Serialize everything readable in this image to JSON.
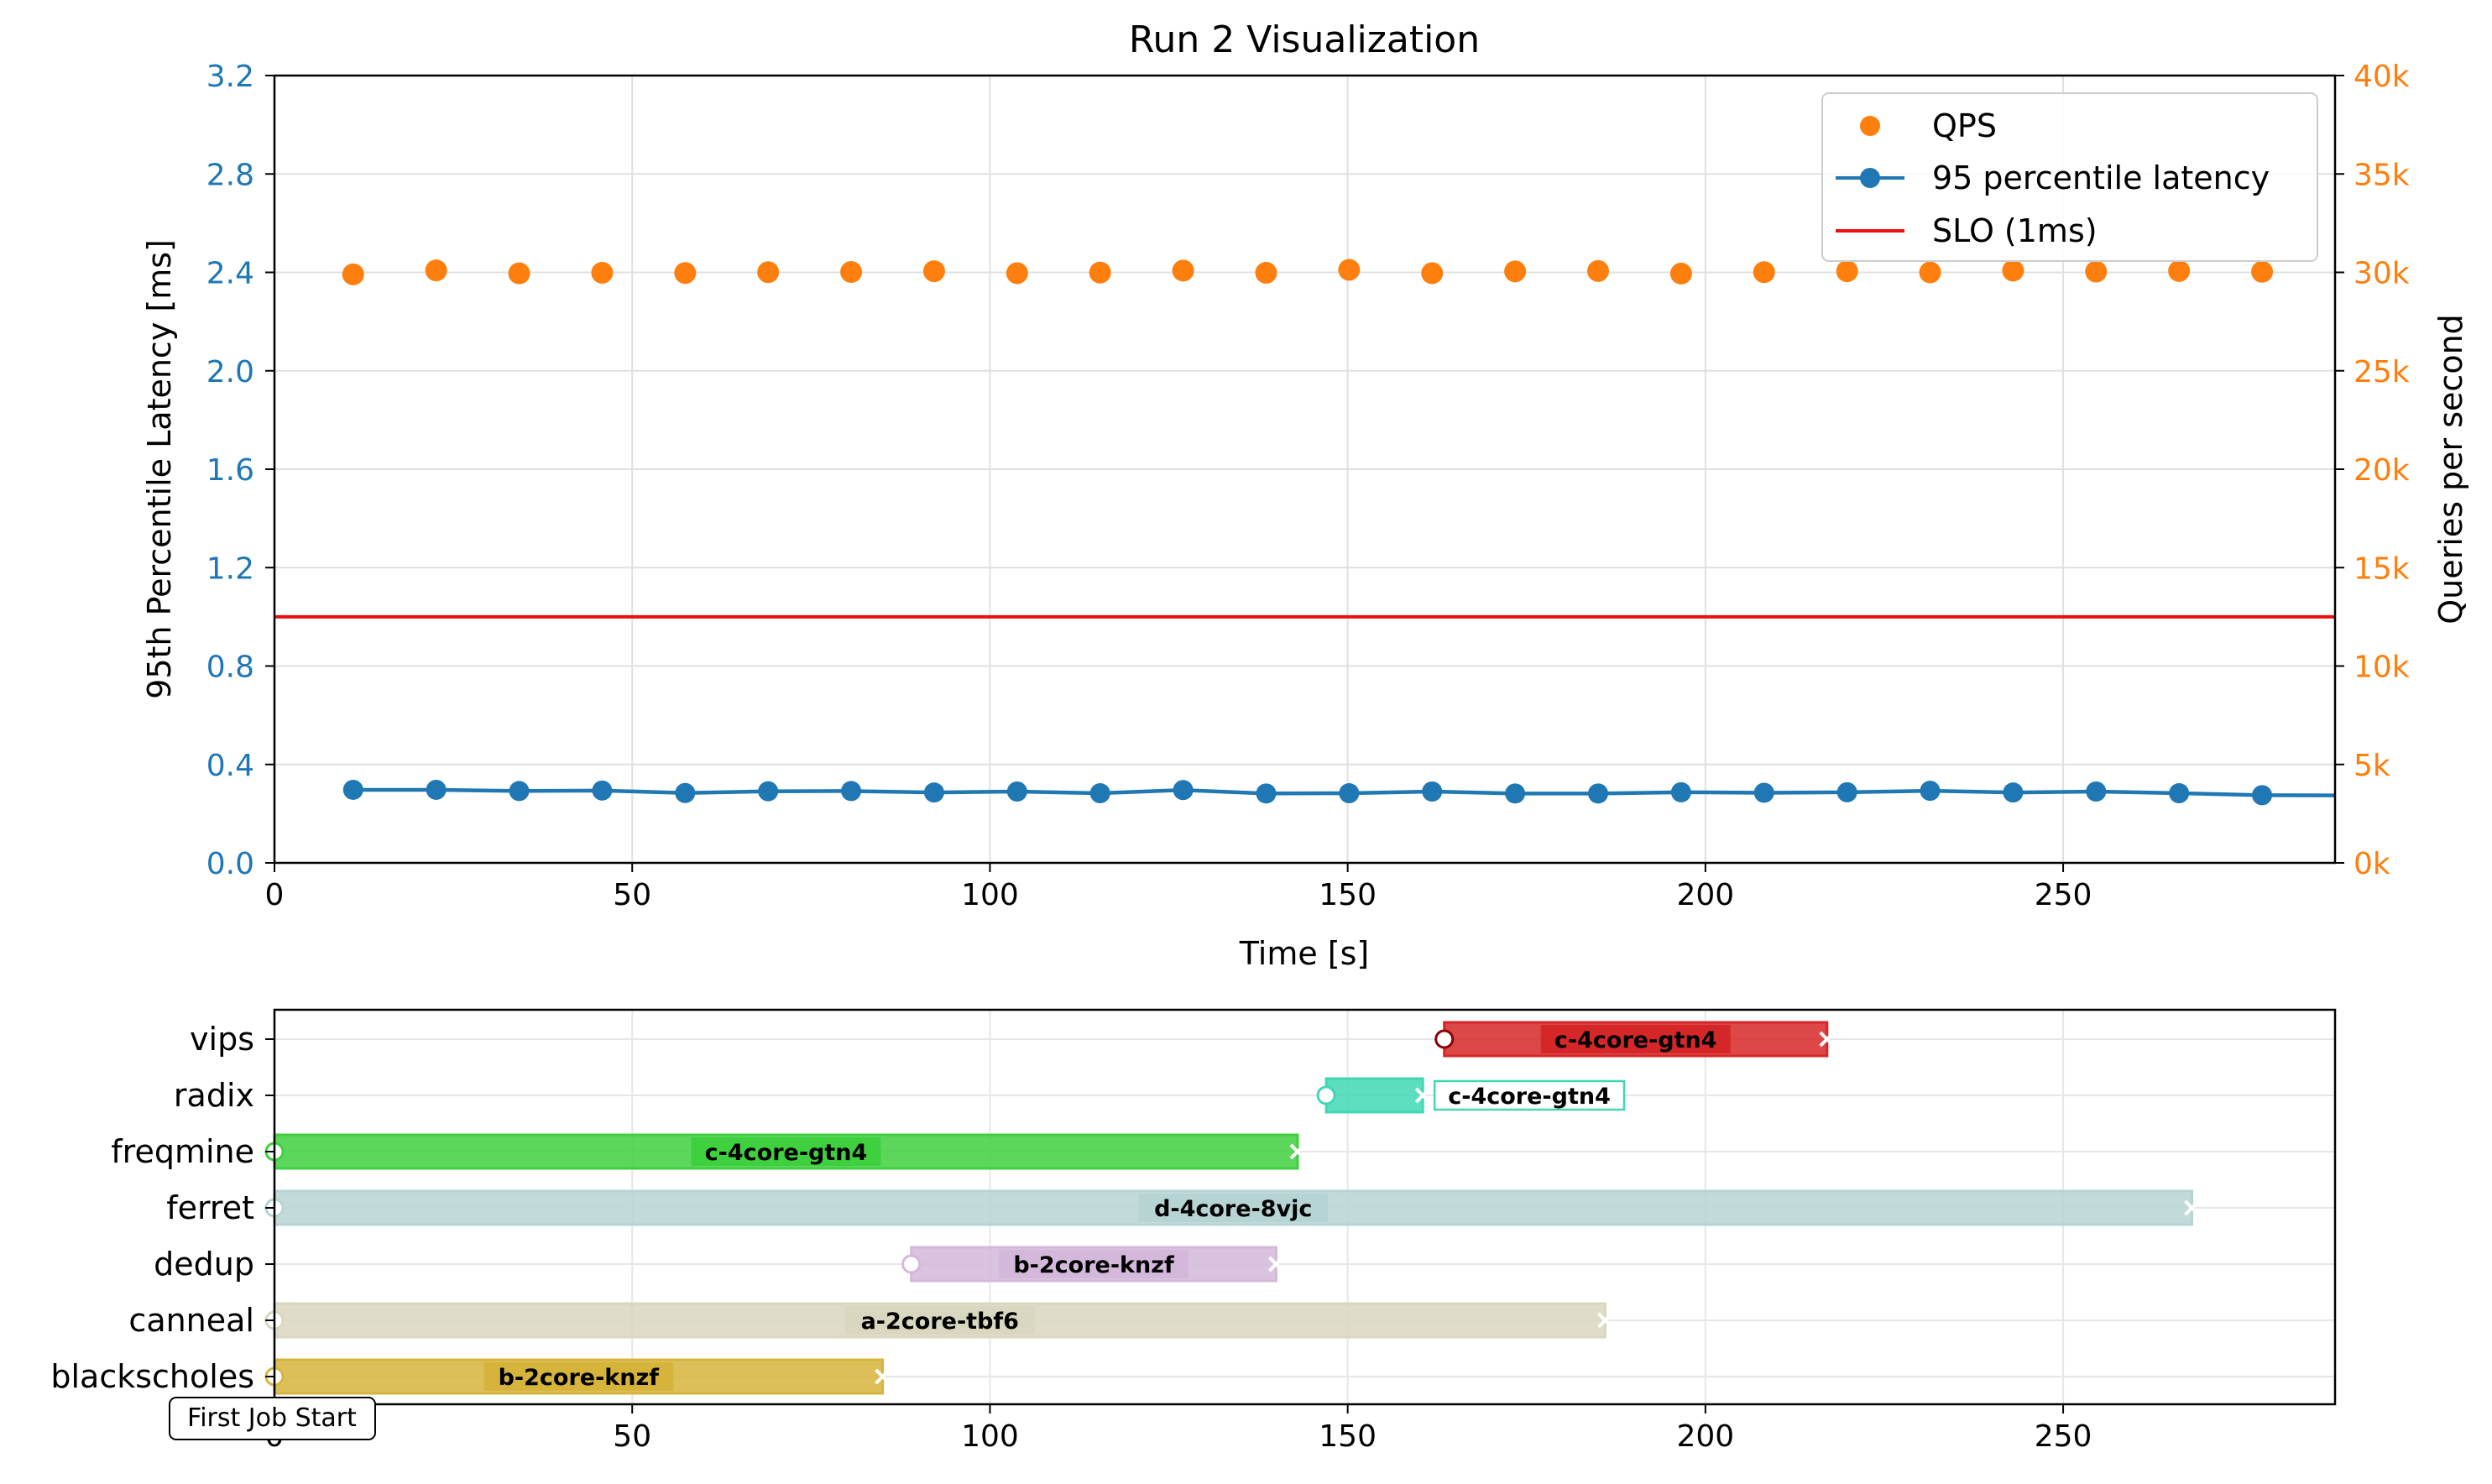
{
  "chart_data": [
    {
      "type": "scatter",
      "title": "Run 2 Visualization",
      "xlabel": "Time [s]",
      "ylabel": "95th Percentile Latency [ms]",
      "ylabel_right": "Queries per second",
      "xlim": [
        0,
        288
      ],
      "ylim": [
        0,
        3.2
      ],
      "ylim_right": [
        0,
        40000
      ],
      "x_ticks": [
        "0",
        "50",
        "100",
        "150",
        "200",
        "250"
      ],
      "y_ticks": [
        "0.0",
        "0.4",
        "0.8",
        "1.2",
        "1.6",
        "2.0",
        "2.4",
        "2.8",
        "3.2"
      ],
      "y_ticks_right": [
        "0k",
        "5k",
        "10k",
        "15k",
        "20k",
        "25k",
        "30k",
        "35k",
        "40k"
      ],
      "grid": true,
      "legend_position": "top-right",
      "legend": [
        "QPS",
        "95 percentile latency",
        "SLO (1ms)"
      ],
      "x": [
        11,
        22.6,
        34.2,
        45.8,
        57.4,
        69,
        80.6,
        92.2,
        103.8,
        115.4,
        127,
        138.6,
        150.2,
        161.8,
        173.4,
        185,
        196.6,
        208.2,
        219.8,
        231.4,
        243,
        254.6,
        266.2,
        277.8
      ],
      "series": [
        {
          "name": "QPS",
          "axis": "right",
          "marker": "dot",
          "values": [
            29900,
            30100,
            29950,
            29980,
            29970,
            30010,
            30020,
            30060,
            29960,
            29990,
            30090,
            29980,
            30130,
            29960,
            30050,
            30070,
            29940,
            30010,
            30060,
            30000,
            30090,
            30040,
            30070,
            30030
          ]
        },
        {
          "name": "95 percentile latency",
          "axis": "left",
          "marker": "line+dot",
          "values": [
            0.297,
            0.297,
            0.292,
            0.294,
            0.284,
            0.291,
            0.292,
            0.286,
            0.29,
            0.283,
            0.296,
            0.282,
            0.283,
            0.29,
            0.282,
            0.282,
            0.287,
            0.285,
            0.287,
            0.293,
            0.286,
            0.29,
            0.283,
            0.275
          ],
          "end_value": 0.274
        }
      ],
      "slo": {
        "name": "SLO (1ms)",
        "value": 1.0
      },
      "colors": {
        "latency": "#1f77b4",
        "qps": "#ff7f0e",
        "slo": "#e81010"
      }
    },
    {
      "type": "timeline",
      "xlim": [
        0,
        288
      ],
      "x_ticks": [
        "0",
        "50",
        "100",
        "150",
        "200",
        "250"
      ],
      "grid": true,
      "jobs": [
        {
          "name": "vips",
          "start": 163.5,
          "end": 217,
          "label": "c-4core-gtn4",
          "color": "#d62728",
          "label_outside": false
        },
        {
          "name": "radix",
          "start": 147,
          "end": 160.5,
          "label": "c-4core-gtn4",
          "color": "#40d8b4",
          "label_outside": true
        },
        {
          "name": "freqmine",
          "start": 0,
          "end": 143,
          "label": "c-4core-gtn4",
          "color": "#3fd03f",
          "label_outside": false
        },
        {
          "name": "ferret",
          "start": 0,
          "end": 268,
          "label": "d-4core-8vjc",
          "color": "#b7d4d4",
          "label_outside": false
        },
        {
          "name": "dedup",
          "start": 89,
          "end": 140,
          "label": "b-2core-knzf",
          "color": "#d4b8db",
          "label_outside": false
        },
        {
          "name": "canneal",
          "start": 0,
          "end": 186,
          "label": "a-2core-tbf6",
          "color": "#d9d7bf",
          "label_outside": false
        },
        {
          "name": "blackscholes",
          "start": 0,
          "end": 85,
          "label": "b-2core-knzf",
          "color": "#d6b43c",
          "label_outside": false
        }
      ],
      "annotation": "First Job Start"
    }
  ]
}
